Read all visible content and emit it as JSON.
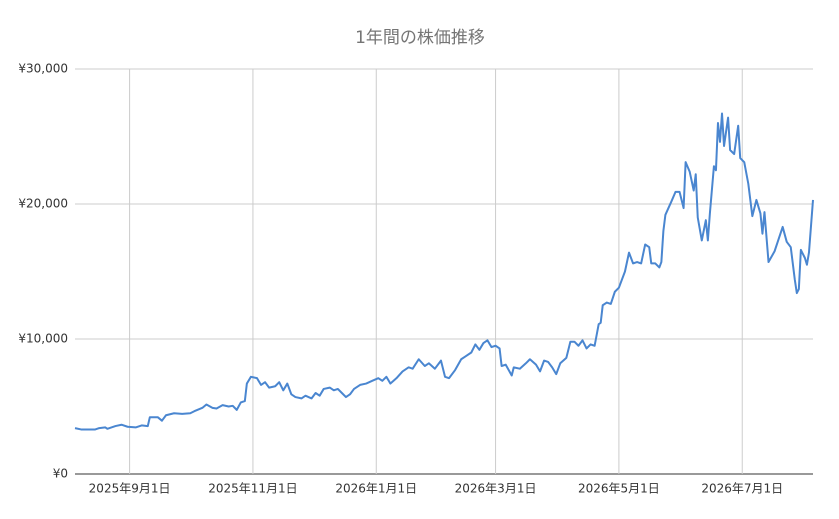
{
  "chart_data": {
    "type": "line",
    "title": "1年間の株価推移",
    "x": [
      "2025-08-05",
      "2025-08-08",
      "2025-08-15",
      "2025-08-17",
      "2025-08-20",
      "2025-08-21",
      "2025-08-25",
      "2025-08-28",
      "2025-08-31",
      "2025-09-04",
      "2025-09-07",
      "2025-09-10",
      "2025-09-11",
      "2025-09-15",
      "2025-09-17",
      "2025-09-19",
      "2025-09-23",
      "2025-09-27",
      "2025-10-01",
      "2025-10-03",
      "2025-10-07",
      "2025-10-09",
      "2025-10-12",
      "2025-10-14",
      "2025-10-17",
      "2025-10-20",
      "2025-10-22",
      "2025-10-24",
      "2025-10-26",
      "2025-10-28",
      "2025-10-29",
      "2025-10-31",
      "2025-11-03",
      "2025-11-05",
      "2025-11-07",
      "2025-11-09",
      "2025-11-12",
      "2025-11-14",
      "2025-11-16",
      "2025-11-18",
      "2025-11-20",
      "2025-11-22",
      "2025-11-25",
      "2025-11-27",
      "2025-11-30",
      "2025-12-02",
      "2025-12-04",
      "2025-12-06",
      "2025-12-09",
      "2025-12-11",
      "2025-12-13",
      "2025-12-15",
      "2025-12-17",
      "2025-12-19",
      "2025-12-21",
      "2025-12-24",
      "2025-12-27",
      "2025-12-30",
      "2026-01-02",
      "2026-01-04",
      "2026-01-06",
      "2026-01-08",
      "2026-01-11",
      "2026-01-14",
      "2026-01-17",
      "2026-01-19",
      "2026-01-22",
      "2026-01-25",
      "2026-01-27",
      "2026-01-30",
      "2026-02-02",
      "2026-02-04",
      "2026-02-06",
      "2026-02-09",
      "2026-02-12",
      "2026-02-14",
      "2026-02-17",
      "2026-02-19",
      "2026-02-21",
      "2026-02-23",
      "2026-02-25",
      "2026-02-27",
      "2026-03-01",
      "2026-03-03",
      "2026-03-04",
      "2026-03-06",
      "2026-03-09",
      "2026-03-10",
      "2026-03-13",
      "2026-03-16",
      "2026-03-18",
      "2026-03-21",
      "2026-03-23",
      "2026-03-25",
      "2026-03-27",
      "2026-03-29",
      "2026-03-31",
      "2026-04-02",
      "2026-04-05",
      "2026-04-07",
      "2026-04-09",
      "2026-04-11",
      "2026-04-13",
      "2026-04-15",
      "2026-04-17",
      "2026-04-19",
      "2026-04-21",
      "2026-04-22",
      "2026-04-23",
      "2026-04-25",
      "2026-04-27",
      "2026-04-29",
      "2026-05-01",
      "2026-05-04",
      "2026-05-06",
      "2026-05-08",
      "2026-05-10",
      "2026-05-12",
      "2026-05-14",
      "2026-05-16",
      "2026-05-17",
      "2026-05-19",
      "2026-05-21",
      "2026-05-22",
      "2026-05-23",
      "2026-05-24",
      "2026-05-27",
      "2026-05-29",
      "2026-05-31",
      "2026-06-02",
      "2026-06-03",
      "2026-06-05",
      "2026-06-07",
      "2026-06-08",
      "2026-06-09",
      "2026-06-11",
      "2026-06-13",
      "2026-06-14",
      "2026-06-15",
      "2026-06-17",
      "2026-06-18",
      "2026-06-19",
      "2026-06-20",
      "2026-06-21",
      "2026-06-22",
      "2026-06-24",
      "2026-06-25",
      "2026-06-27",
      "2026-06-29",
      "2026-06-30",
      "2026-07-02",
      "2026-07-04",
      "2026-07-06",
      "2026-07-08",
      "2026-07-10",
      "2026-07-11",
      "2026-07-12",
      "2026-07-14",
      "2026-07-17",
      "2026-07-19",
      "2026-07-21",
      "2026-07-23",
      "2026-07-25",
      "2026-07-27",
      "2026-07-28",
      "2026-07-29",
      "2026-07-30",
      "2026-08-01",
      "2026-08-02",
      "2026-08-03",
      "2026-08-05"
    ],
    "series": [
      {
        "color": "#4a86d0",
        "values": [
          3400,
          3300,
          3300,
          3400,
          3450,
          3350,
          3550,
          3650,
          3500,
          3450,
          3600,
          3550,
          4200,
          4200,
          3950,
          4350,
          4500,
          4450,
          4500,
          4650,
          4900,
          5150,
          4900,
          4850,
          5100,
          5000,
          5050,
          4750,
          5300,
          5400,
          6700,
          7200,
          7100,
          6600,
          6800,
          6400,
          6500,
          6800,
          6200,
          6700,
          5900,
          5700,
          5600,
          5800,
          5600,
          6000,
          5800,
          6300,
          6400,
          6200,
          6300,
          6000,
          5700,
          5900,
          6300,
          6600,
          6700,
          6900,
          7100,
          6900,
          7200,
          6700,
          7100,
          7600,
          7900,
          7800,
          8500,
          8000,
          8200,
          7800,
          8400,
          7200,
          7100,
          7700,
          8500,
          8700,
          9000,
          9600,
          9200,
          9700,
          9900,
          9400,
          9500,
          9300,
          8000,
          8100,
          7300,
          7900,
          7800,
          8200,
          8500,
          8100,
          7600,
          8400,
          8300,
          7900,
          7400,
          8200,
          8600,
          9800,
          9800,
          9500,
          9900,
          9300,
          9600,
          9500,
          11100,
          11200,
          12500,
          12700,
          12600,
          13500,
          13800,
          15000,
          16400,
          15600,
          15700,
          15600,
          17000,
          16800,
          15600,
          15600,
          15300,
          15700,
          18000,
          19200,
          20200,
          20900,
          20900,
          19700,
          23100,
          22400,
          21000,
          22200,
          19000,
          17300,
          18800,
          17300,
          19300,
          22800,
          22500,
          26000,
          24600,
          26700,
          24300,
          26400,
          24000,
          23700,
          25800,
          23400,
          23100,
          21500,
          19100,
          20300,
          19300,
          17800,
          19400,
          15700,
          16500,
          17400,
          18300,
          17200,
          16800,
          14400,
          13400,
          13700,
          16600,
          16000,
          15500,
          16400,
          20300
        ]
      }
    ],
    "xlim": [
      "2025-08-05",
      "2026-08-05"
    ],
    "xticks": [
      {
        "value": "2025-09-01",
        "label": "2025年9月1日"
      },
      {
        "value": "2025-11-01",
        "label": "2025年11月1日"
      },
      {
        "value": "2026-01-01",
        "label": "2026年1月1日"
      },
      {
        "value": "2026-03-01",
        "label": "2026年3月1日"
      },
      {
        "value": "2026-05-01",
        "label": "2026年5月1日"
      },
      {
        "value": "2026-07-01",
        "label": "2026年7月1日"
      }
    ],
    "ylim": [
      0,
      30000
    ],
    "yticks": [
      {
        "value": 0,
        "label": "¥0"
      },
      {
        "value": 10000,
        "label": "¥10,000"
      },
      {
        "value": 20000,
        "label": "¥20,000"
      },
      {
        "value": 30000,
        "label": "¥30,000"
      }
    ],
    "grid": true
  }
}
